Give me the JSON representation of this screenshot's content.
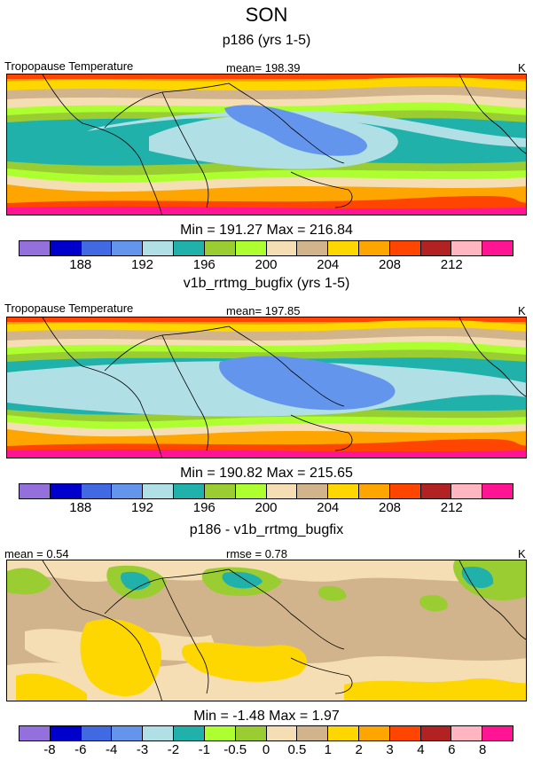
{
  "title": "SON",
  "colors": [
    "#9370db",
    "#0000cd",
    "#4169e1",
    "#6495ed",
    "#b0e0e6",
    "#20b2aa",
    "#9acd32",
    "#adff2f",
    "#f5deb3",
    "#d2b48c",
    "#ffd700",
    "#ffa500",
    "#ff4500",
    "#b22222",
    "#ffb6c1",
    "#ff1493"
  ],
  "diff_colors": [
    "#9370db",
    "#0000cd",
    "#4169e1",
    "#6495ed",
    "#b0e0e6",
    "#20b2aa",
    "#adff2f",
    "#9acd32",
    "#f5deb3",
    "#d2b48c",
    "#ffd700",
    "#ffa500",
    "#ff4500",
    "#b22222",
    "#ffb6c1",
    "#ff1493"
  ],
  "panels": [
    {
      "subtitle": "p186 (yrs 1-5)",
      "left_label": "Tropopause Temperature",
      "center_label": "mean= 198.39",
      "right_label": "K",
      "minmax": "Min = 191.27 Max = 216.84",
      "ticks": [
        "188",
        "192",
        "196",
        "200",
        "204",
        "208",
        "212"
      ]
    },
    {
      "subtitle": "v1b_rrtmg_bugfix (yrs 1-5)",
      "left_label": "Tropopause Temperature",
      "center_label": "mean= 197.85",
      "right_label": "K",
      "minmax": "Min = 190.82 Max = 215.65",
      "ticks": [
        "188",
        "192",
        "196",
        "200",
        "204",
        "208",
        "212"
      ]
    },
    {
      "subtitle": "p186 - v1b_rrtmg_bugfix",
      "left_label": "mean =   0.54",
      "center_label": "rmse =   0.78",
      "right_label": "K",
      "minmax": "Min =  -1.48 Max =   1.97",
      "ticks": [
        "-8",
        "-6",
        "-4",
        "-3",
        "-2",
        "-1",
        "-0.5",
        "0",
        "0.5",
        "1",
        "2",
        "3",
        "4",
        "6",
        "8"
      ]
    }
  ]
}
